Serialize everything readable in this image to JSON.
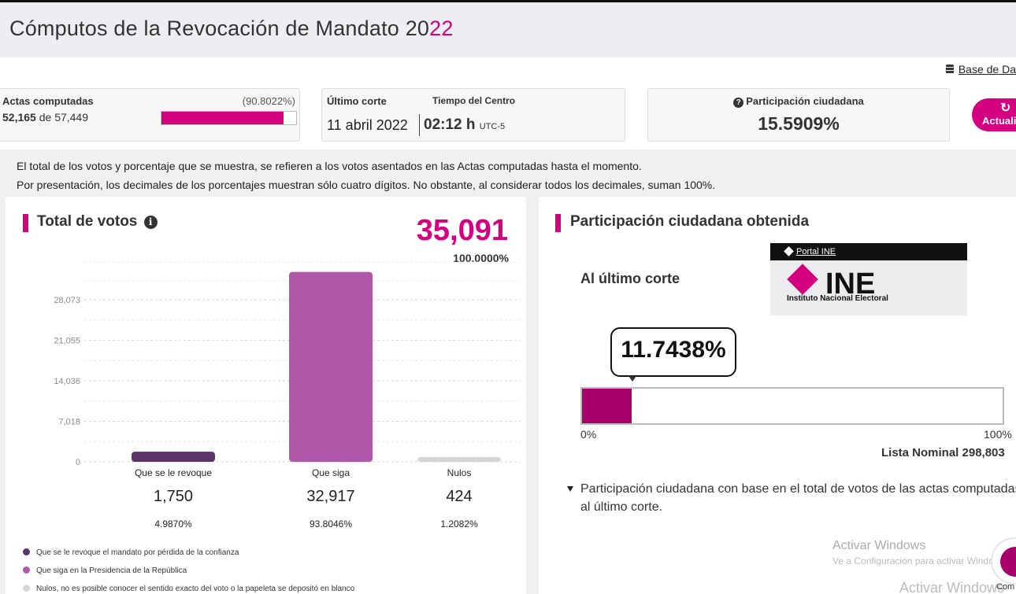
{
  "header": {
    "title_main": "Cómputos de la Revocación de Mandato 20",
    "title_accent": "22"
  },
  "database_link": "Base de Da",
  "actas": {
    "title": "Actas computadas",
    "computed": "52,165",
    "of_word": "de",
    "total": "57,449",
    "percent_text": "(90.8022%)",
    "progress_fraction": 0.908022
  },
  "corte": {
    "label": "Último corte",
    "timezone_label": "Tiempo del Centro",
    "date": "11 abril 2022",
    "time": "02:12 h",
    "utc": "UTC-5"
  },
  "participacion_card": {
    "title": "Participación ciudadana",
    "value": "15.5909%"
  },
  "refresh_button": {
    "icon": "refresh-icon",
    "label": "Actualiz"
  },
  "notes": [
    "El total de los votos y porcentaje que se muestra, se refieren a los votos asentados en las Actas computadas hasta el momento.",
    "Por presentación, los decimales de los porcentajes muestran sólo cuatro dígitos. No obstante, al considerar todos los decimales, suman 100%."
  ],
  "total_votos": {
    "title": "Total de votos",
    "total": "35,091",
    "percent": "100.0000%"
  },
  "chart_data": {
    "type": "bar",
    "categories": [
      "Que se le revoque",
      "Que siga",
      "Nulos"
    ],
    "values": [
      1750,
      32917,
      424
    ],
    "percentages": [
      "4.9870%",
      "93.8046%",
      "1.2082%"
    ],
    "value_labels": [
      "1,750",
      "32,917",
      "424"
    ],
    "colors": [
      "#5b3468",
      "#b058a9",
      "#d6d6d6"
    ],
    "yticks": [
      0,
      7018,
      14036,
      21055,
      28073
    ],
    "ytick_labels": [
      "0",
      "7,018",
      "14,036",
      "21,055",
      "28,073"
    ],
    "ylim": [
      0,
      33000
    ],
    "grid": true
  },
  "legend": [
    {
      "label": "Que se le revoque el mandato por pérdida de la confianza",
      "color": "#5b3468"
    },
    {
      "label": "Que siga en la Presidencia de la República",
      "color": "#b058a9"
    },
    {
      "label": "Nulos, no es posible conocer el sentido exacto del voto o la papeleta se depositó en blanco",
      "color": "#d6d6d6"
    }
  ],
  "participacion_obtenida": {
    "title": "Participación ciudadana obtenida",
    "subtitle": "Al último corte",
    "portal_link": "Portal INE",
    "logo_text": "INE",
    "logo_subtext": "Instituto Nacional Electoral",
    "value": "11.7438%",
    "progress_fraction": 0.117438,
    "min_label": "0%",
    "max_label": "100%",
    "lista_nominal": "Lista Nominal 298,803",
    "footnote": "Participación ciudadana con base en el total de votos de las actas computadas, al último corte."
  },
  "watermark": {
    "line1": "Activar Windows",
    "line2": "Ve a Configuración para activar Windows.",
    "line3": "Activar Windows"
  },
  "chat_widget": {
    "label": "Com"
  }
}
